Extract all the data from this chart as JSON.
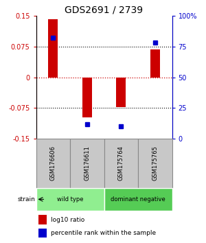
{
  "title": "GDS2691 / 2739",
  "samples": [
    "GSM176606",
    "GSM176611",
    "GSM175764",
    "GSM175765"
  ],
  "log10_ratio": [
    0.142,
    -0.098,
    -0.072,
    0.068
  ],
  "percentile_rank": [
    0.82,
    0.12,
    0.1,
    0.78
  ],
  "ylim": [
    -0.15,
    0.15
  ],
  "yticks_left": [
    -0.15,
    -0.075,
    0,
    0.075,
    0.15
  ],
  "yticks_right": [
    0,
    25,
    50,
    75,
    100
  ],
  "groups": [
    {
      "label": "wild type",
      "samples": [
        0,
        1
      ],
      "color": "#90EE90"
    },
    {
      "label": "dominant negative",
      "samples": [
        2,
        3
      ],
      "color": "#55CC55"
    }
  ],
  "bar_color": "#CC0000",
  "dot_color": "#0000CC",
  "zero_line_color": "#CC0000",
  "bg_color": "#FFFFFF",
  "label_color_left": "#CC0000",
  "label_color_right": "#0000CC",
  "title_fontsize": 10,
  "tick_fontsize": 7,
  "sample_fontsize": 6,
  "sample_box_color": "#C8C8C8",
  "sample_box_edge": "#888888"
}
